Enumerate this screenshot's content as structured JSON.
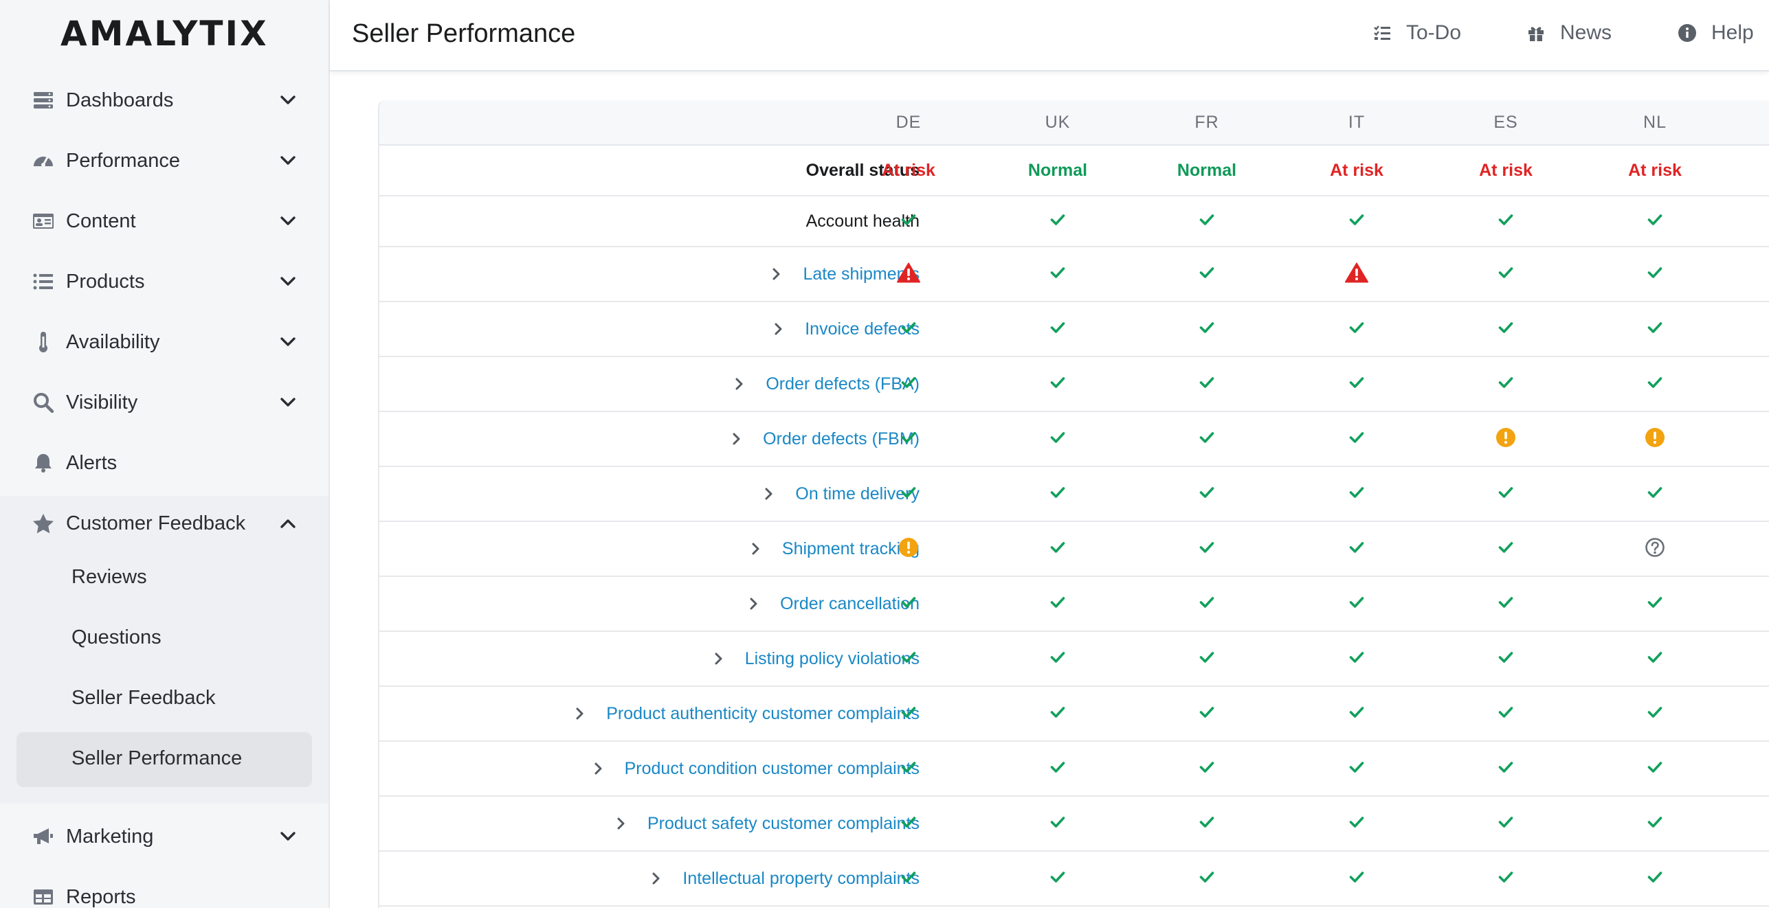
{
  "sidebar": {
    "logo": "AMALYTIX",
    "items": [
      {
        "label": "Dashboards",
        "icon": "dashboards-icon"
      },
      {
        "label": "Performance",
        "icon": "speedometer-icon"
      },
      {
        "label": "Content",
        "icon": "id-card-icon"
      },
      {
        "label": "Products",
        "icon": "list-icon"
      },
      {
        "label": "Availability",
        "icon": "thermometer-icon"
      },
      {
        "label": "Visibility",
        "icon": "search-icon"
      },
      {
        "label": "Alerts",
        "icon": "bell-icon"
      },
      {
        "label": "Customer Feedback",
        "icon": "star-icon"
      },
      {
        "label": "Marketing",
        "icon": "megaphone-icon"
      },
      {
        "label": "Reports",
        "icon": "table-icon"
      }
    ],
    "sub_items": [
      {
        "label": "Reviews"
      },
      {
        "label": "Questions"
      },
      {
        "label": "Seller Feedback"
      },
      {
        "label": "Seller Performance"
      }
    ],
    "active_sub_item": "Seller Performance"
  },
  "header": {
    "title": "Seller Performance",
    "links": [
      {
        "label": "To-Do",
        "icon": "checklist-icon"
      },
      {
        "label": "News",
        "icon": "gift-icon"
      },
      {
        "label": "Help",
        "icon": "info-icon"
      }
    ]
  },
  "table": {
    "columns": [
      "DE",
      "UK",
      "FR",
      "IT",
      "ES",
      "NL"
    ],
    "overall_status": {
      "label": "Overall status",
      "values": [
        "At risk",
        "Normal",
        "Normal",
        "At risk",
        "At risk",
        "At risk"
      ]
    },
    "rows": [
      {
        "label": "Account health",
        "expandable": false,
        "link": false,
        "statuses": [
          "ok",
          "ok",
          "ok",
          "ok",
          "ok",
          "ok"
        ]
      },
      {
        "label": "Late shipments",
        "expandable": true,
        "link": true,
        "statuses": [
          "alert",
          "ok",
          "ok",
          "alert",
          "ok",
          "ok"
        ]
      },
      {
        "label": "Invoice defects",
        "expandable": true,
        "link": true,
        "statuses": [
          "ok",
          "ok",
          "ok",
          "ok",
          "ok",
          "ok"
        ]
      },
      {
        "label": "Order defects (FBA)",
        "expandable": true,
        "link": true,
        "statuses": [
          "ok",
          "ok",
          "ok",
          "ok",
          "ok",
          "ok"
        ]
      },
      {
        "label": "Order defects (FBM)",
        "expandable": true,
        "link": true,
        "statuses": [
          "ok",
          "ok",
          "ok",
          "ok",
          "warning",
          "warning"
        ]
      },
      {
        "label": "On time delivery",
        "expandable": true,
        "link": true,
        "statuses": [
          "ok",
          "ok",
          "ok",
          "ok",
          "ok",
          "ok"
        ]
      },
      {
        "label": "Shipment tracking",
        "expandable": true,
        "link": true,
        "statuses": [
          "warning",
          "ok",
          "ok",
          "ok",
          "ok",
          "unknown"
        ]
      },
      {
        "label": "Order cancellation",
        "expandable": true,
        "link": true,
        "statuses": [
          "ok",
          "ok",
          "ok",
          "ok",
          "ok",
          "ok"
        ]
      },
      {
        "label": "Listing policy violations",
        "expandable": true,
        "link": true,
        "statuses": [
          "ok",
          "ok",
          "ok",
          "ok",
          "ok",
          "ok"
        ]
      },
      {
        "label": "Product authenticity customer complaints",
        "expandable": true,
        "link": true,
        "statuses": [
          "ok",
          "ok",
          "ok",
          "ok",
          "ok",
          "ok"
        ]
      },
      {
        "label": "Product condition customer complaints",
        "expandable": true,
        "link": true,
        "statuses": [
          "ok",
          "ok",
          "ok",
          "ok",
          "ok",
          "ok"
        ]
      },
      {
        "label": "Product safety customer complaints",
        "expandable": true,
        "link": true,
        "statuses": [
          "ok",
          "ok",
          "ok",
          "ok",
          "ok",
          "ok"
        ]
      },
      {
        "label": "Intellectual property complaints",
        "expandable": true,
        "link": true,
        "statuses": [
          "ok",
          "ok",
          "ok",
          "ok",
          "ok",
          "ok"
        ]
      }
    ]
  },
  "colors": {
    "ok": "#12a05c",
    "at_risk": "#e02424",
    "normal": "#109a58",
    "warning": "#f2a30f",
    "unknown": "#6b7078",
    "link": "#1a88c6"
  }
}
